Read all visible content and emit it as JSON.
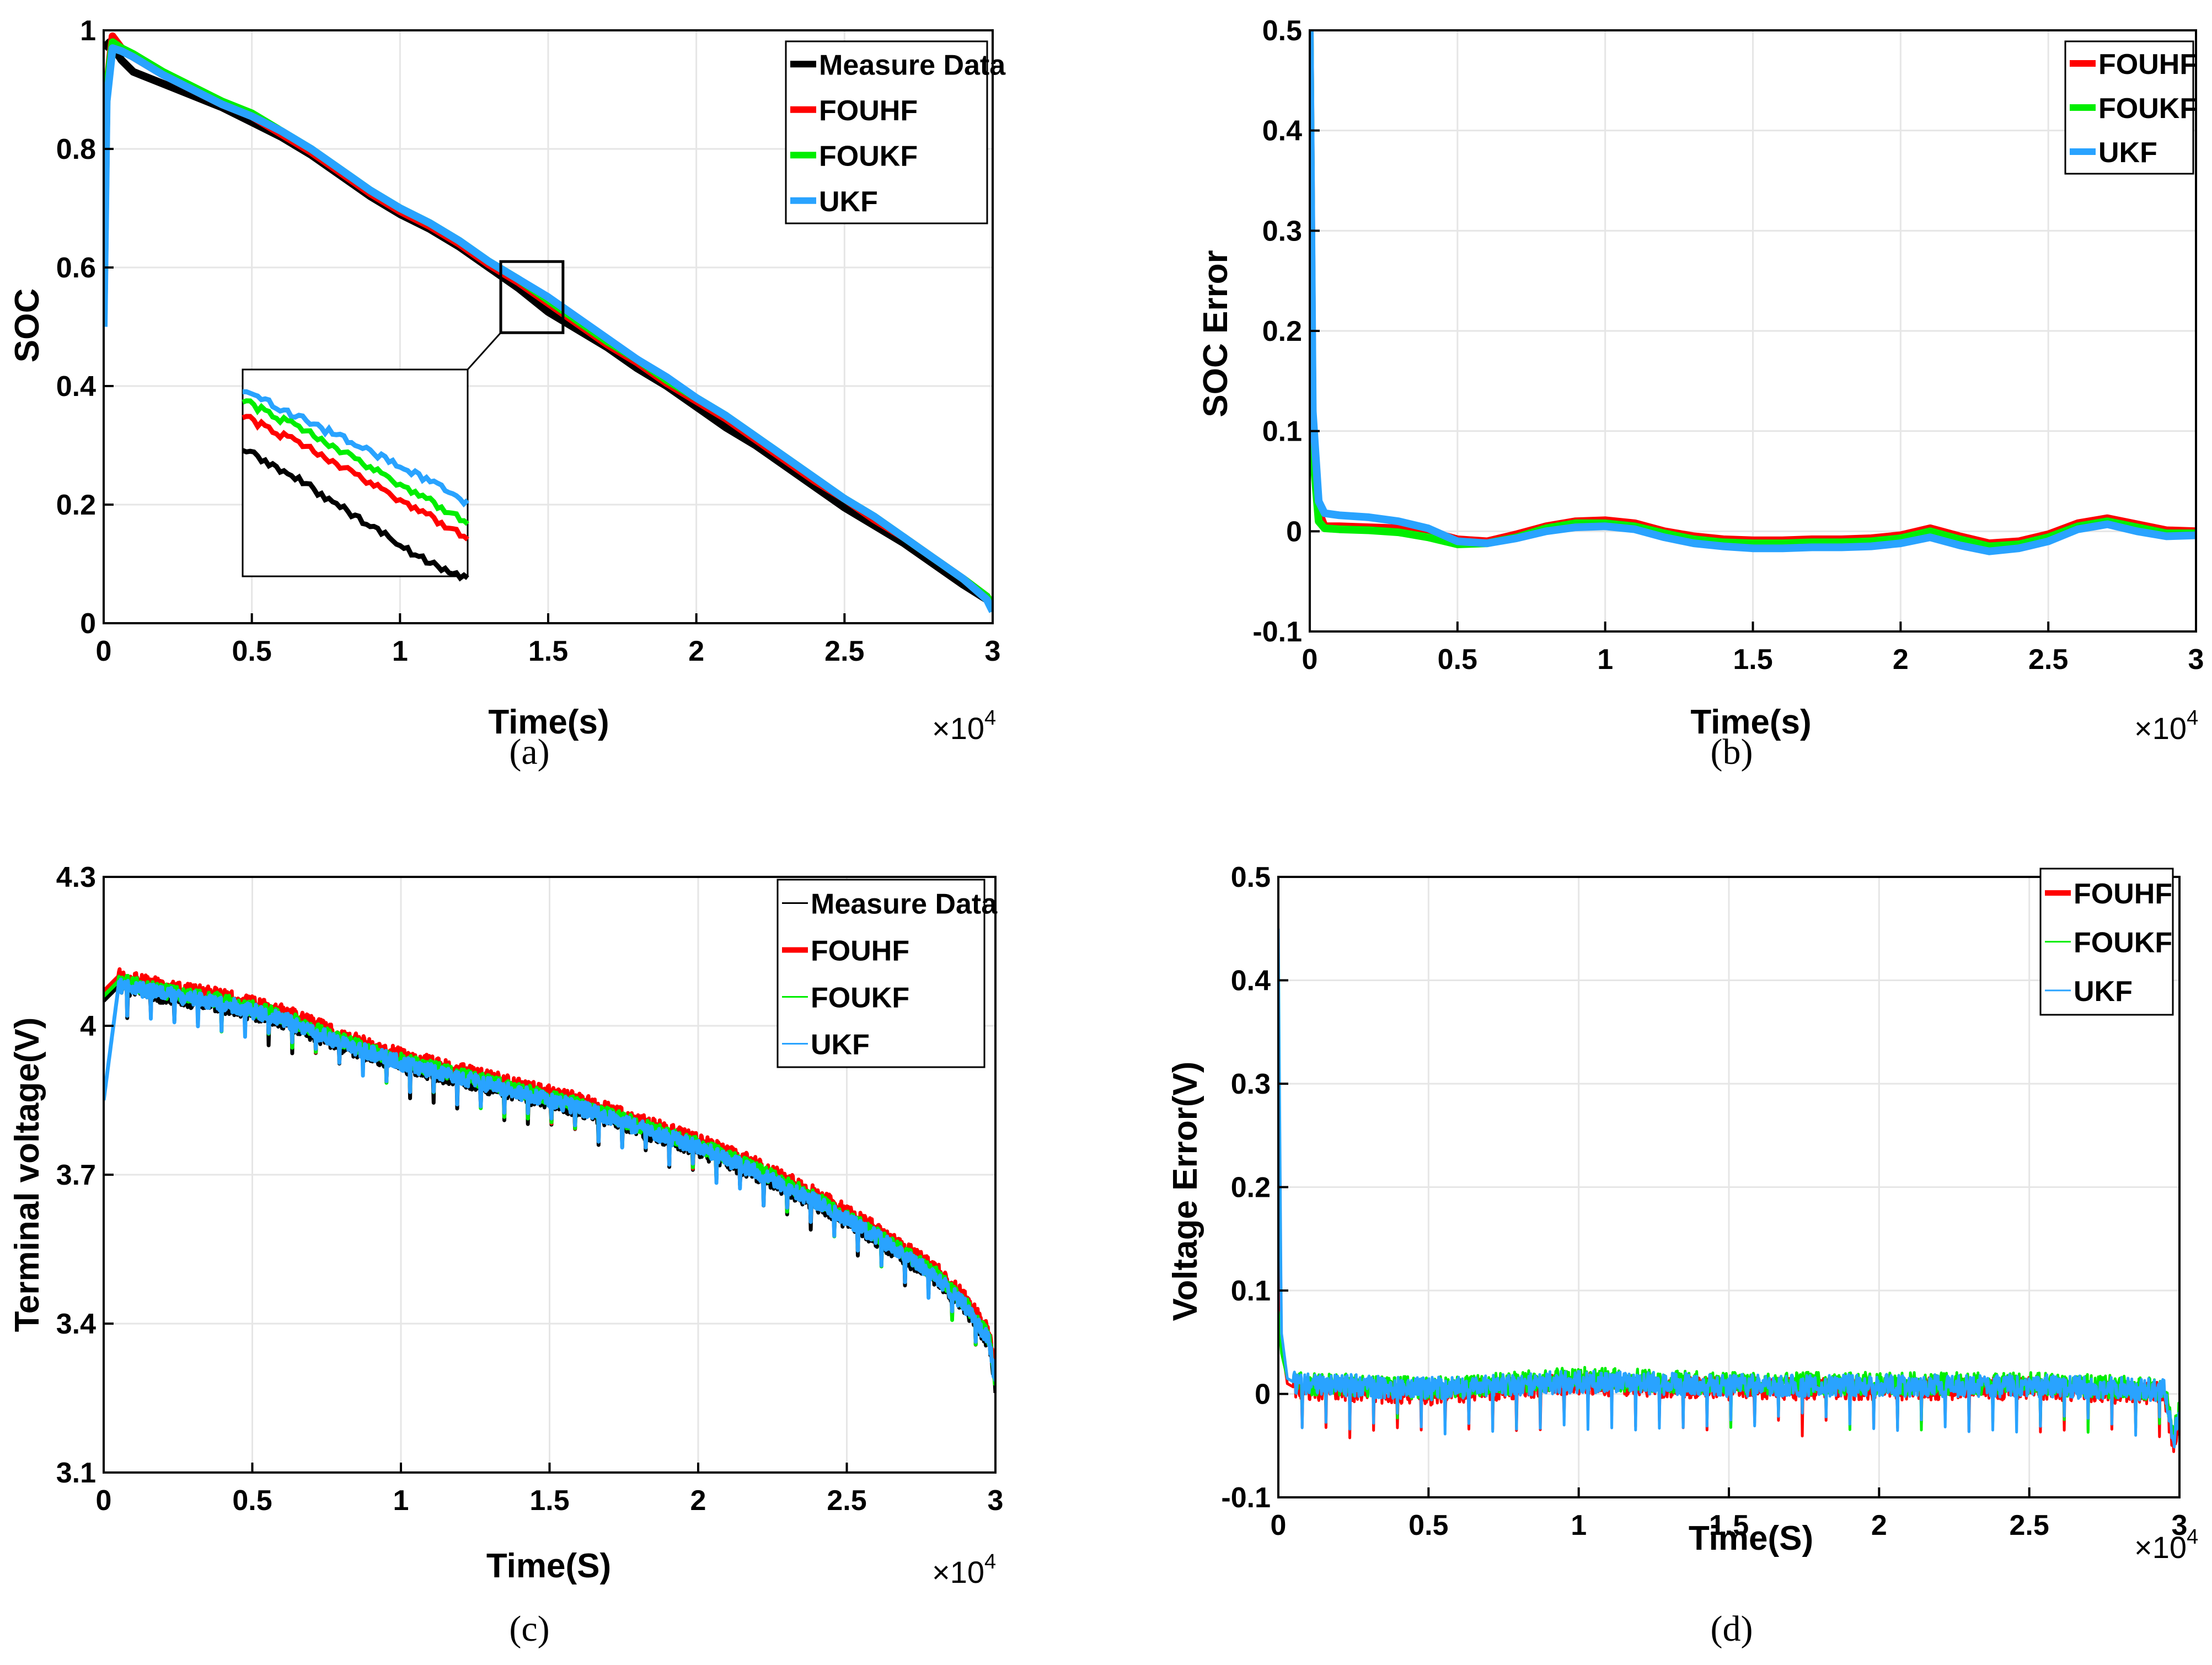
{
  "figure_captions": [
    "(a)",
    "(b)",
    "(c)",
    "(d)"
  ],
  "chart_data": [
    {
      "id": "a",
      "type": "line",
      "caption": "(a)",
      "xlabel": "Time(s)",
      "ylabel": "SOC",
      "x_multiplier": "×10",
      "x_multiplier_exp": "4",
      "xlim": [
        0,
        30000
      ],
      "ylim": [
        0,
        1
      ],
      "xticks": [
        0,
        5000,
        10000,
        15000,
        20000,
        25000,
        30000
      ],
      "xtick_labels": [
        "0",
        "0.5",
        "1",
        "1.5",
        "2",
        "2.5",
        "3"
      ],
      "yticks": [
        0,
        0.2,
        0.4,
        0.6,
        0.8,
        1
      ],
      "ytick_labels": [
        "0",
        "0.2",
        "0.4",
        "0.6",
        "0.8",
        "1"
      ],
      "grid": true,
      "legend_position": "top-right",
      "series": [
        {
          "name": "Measure Data",
          "color": "#000000",
          "x": [
            0,
            200,
            600,
            1000,
            2000,
            3000,
            4000,
            5000,
            6000,
            7000,
            8000,
            9000,
            10000,
            11000,
            12000,
            13000,
            14000,
            15000,
            16000,
            17000,
            18000,
            19000,
            20000,
            21000,
            22000,
            23000,
            24000,
            25000,
            26000,
            27000,
            28000,
            29000,
            29800,
            30000
          ],
          "y": [
            0.97,
            0.98,
            0.95,
            0.93,
            0.91,
            0.89,
            0.87,
            0.845,
            0.82,
            0.79,
            0.755,
            0.72,
            0.69,
            0.665,
            0.635,
            0.6,
            0.565,
            0.525,
            0.495,
            0.465,
            0.43,
            0.4,
            0.365,
            0.33,
            0.3,
            0.265,
            0.23,
            0.195,
            0.165,
            0.135,
            0.1,
            0.065,
            0.04,
            0.025
          ]
        },
        {
          "name": "FOUHF",
          "color": "#ff0000",
          "x": [
            0,
            100,
            300,
            600,
            1000,
            2000,
            3000,
            4000,
            5000,
            6000,
            7000,
            8000,
            9000,
            10000,
            11000,
            12000,
            13000,
            14000,
            15000,
            16000,
            17000,
            18000,
            19000,
            20000,
            21000,
            22000,
            23000,
            24000,
            25000,
            26000,
            27000,
            28000,
            29000,
            29800,
            30000
          ],
          "y": [
            0.52,
            0.9,
            0.99,
            0.97,
            0.955,
            0.925,
            0.9,
            0.875,
            0.855,
            0.825,
            0.795,
            0.76,
            0.725,
            0.695,
            0.67,
            0.64,
            0.605,
            0.575,
            0.54,
            0.505,
            0.47,
            0.44,
            0.405,
            0.375,
            0.345,
            0.31,
            0.275,
            0.24,
            0.21,
            0.175,
            0.145,
            0.11,
            0.075,
            0.045,
            0.03
          ]
        },
        {
          "name": "FOUKF",
          "color": "#00ee00",
          "x": [
            0,
            100,
            300,
            600,
            1000,
            2000,
            3000,
            4000,
            5000,
            6000,
            7000,
            8000,
            9000,
            10000,
            11000,
            12000,
            13000,
            14000,
            15000,
            16000,
            17000,
            18000,
            19000,
            20000,
            21000,
            22000,
            23000,
            24000,
            25000,
            26000,
            27000,
            28000,
            29000,
            29800,
            30000
          ],
          "y": [
            0.52,
            0.9,
            0.98,
            0.97,
            0.96,
            0.93,
            0.905,
            0.88,
            0.86,
            0.83,
            0.8,
            0.765,
            0.73,
            0.7,
            0.675,
            0.645,
            0.61,
            0.58,
            0.545,
            0.51,
            0.475,
            0.445,
            0.41,
            0.38,
            0.35,
            0.315,
            0.28,
            0.245,
            0.21,
            0.18,
            0.145,
            0.11,
            0.075,
            0.045,
            0.03
          ]
        },
        {
          "name": "UKF",
          "color": "#29a3ff",
          "x": [
            0,
            100,
            300,
            600,
            1000,
            2000,
            3000,
            4000,
            5000,
            6000,
            7000,
            8000,
            9000,
            10000,
            11000,
            12000,
            13000,
            14000,
            15000,
            16000,
            17000,
            18000,
            19000,
            20000,
            21000,
            22000,
            23000,
            24000,
            25000,
            26000,
            27000,
            28000,
            29000,
            29800,
            30000
          ],
          "y": [
            0.5,
            0.88,
            0.97,
            0.965,
            0.955,
            0.925,
            0.9,
            0.875,
            0.855,
            0.83,
            0.8,
            0.765,
            0.73,
            0.7,
            0.675,
            0.645,
            0.61,
            0.58,
            0.55,
            0.515,
            0.48,
            0.445,
            0.415,
            0.38,
            0.35,
            0.315,
            0.28,
            0.245,
            0.21,
            0.18,
            0.145,
            0.11,
            0.075,
            0.04,
            0.02
          ]
        }
      ]
    },
    {
      "id": "b",
      "type": "line",
      "caption": "(b)",
      "xlabel": "Time(s)",
      "ylabel": "SOC Error",
      "x_multiplier": "×10",
      "x_multiplier_exp": "4",
      "xlim": [
        0,
        30000
      ],
      "ylim": [
        -0.1,
        0.5
      ],
      "xticks": [
        0,
        5000,
        10000,
        15000,
        20000,
        25000,
        30000
      ],
      "xtick_labels": [
        "0",
        "0.5",
        "1",
        "1.5",
        "2",
        "2.5",
        "3"
      ],
      "yticks": [
        -0.1,
        0,
        0.1,
        0.2,
        0.3,
        0.4,
        0.5
      ],
      "ytick_labels": [
        "-0.1",
        "0",
        "0.1",
        "0.2",
        "0.3",
        "0.4",
        "0.5"
      ],
      "grid": true,
      "legend_position": "top-right",
      "series": [
        {
          "name": "FOUHF",
          "color": "#ff0000",
          "x": [
            0,
            100,
            300,
            500,
            1000,
            2000,
            3000,
            4000,
            5000,
            6000,
            7000,
            8000,
            9000,
            10000,
            11000,
            12000,
            13000,
            14000,
            15000,
            16000,
            17000,
            18000,
            19000,
            20000,
            21000,
            22000,
            23000,
            24000,
            25000,
            26000,
            27000,
            28000,
            29000,
            30000
          ],
          "y": [
            0.5,
            0.1,
            0.02,
            0.005,
            0.005,
            0.004,
            0.003,
            0.0,
            -0.008,
            -0.01,
            -0.003,
            0.005,
            0.01,
            0.011,
            0.008,
            0.0,
            -0.005,
            -0.008,
            -0.009,
            -0.009,
            -0.008,
            -0.008,
            -0.007,
            -0.004,
            0.003,
            -0.005,
            -0.012,
            -0.01,
            -0.003,
            0.008,
            0.013,
            0.007,
            0.001,
            0.0
          ]
        },
        {
          "name": "FOUKF",
          "color": "#00ee00",
          "x": [
            0,
            100,
            300,
            500,
            1000,
            2000,
            3000,
            4000,
            5000,
            6000,
            7000,
            8000,
            9000,
            10000,
            11000,
            12000,
            13000,
            14000,
            15000,
            16000,
            17000,
            18000,
            19000,
            20000,
            21000,
            22000,
            23000,
            24000,
            25000,
            26000,
            27000,
            28000,
            29000,
            30000
          ],
          "y": [
            0.5,
            0.08,
            0.01,
            0.003,
            0.002,
            0.001,
            -0.001,
            -0.006,
            -0.013,
            -0.012,
            -0.006,
            0.003,
            0.008,
            0.008,
            0.005,
            -0.002,
            -0.008,
            -0.011,
            -0.012,
            -0.012,
            -0.011,
            -0.011,
            -0.01,
            -0.007,
            0.0,
            -0.008,
            -0.015,
            -0.013,
            -0.006,
            0.005,
            0.01,
            0.004,
            -0.002,
            -0.002
          ]
        },
        {
          "name": "UKF",
          "color": "#29a3ff",
          "x": [
            0,
            100,
            300,
            500,
            1000,
            2000,
            3000,
            4000,
            5000,
            6000,
            7000,
            8000,
            9000,
            10000,
            11000,
            12000,
            13000,
            14000,
            15000,
            16000,
            17000,
            18000,
            19000,
            20000,
            21000,
            22000,
            23000,
            24000,
            25000,
            26000,
            27000,
            28000,
            29000,
            30000
          ],
          "y": [
            0.5,
            0.12,
            0.03,
            0.018,
            0.016,
            0.014,
            0.01,
            0.003,
            -0.01,
            -0.012,
            -0.007,
            0.0,
            0.004,
            0.005,
            0.002,
            -0.006,
            -0.012,
            -0.015,
            -0.017,
            -0.017,
            -0.016,
            -0.016,
            -0.015,
            -0.012,
            -0.006,
            -0.014,
            -0.02,
            -0.017,
            -0.01,
            0.002,
            0.007,
            0.0,
            -0.005,
            -0.004
          ]
        }
      ]
    },
    {
      "id": "c",
      "type": "line",
      "caption": "(c)",
      "xlabel": "Time(S)",
      "ylabel": "Terminal voltage(V)",
      "x_multiplier": "×10",
      "x_multiplier_exp": "4",
      "xlim": [
        0,
        30000
      ],
      "ylim": [
        3.1,
        4.3
      ],
      "xticks": [
        0,
        5000,
        10000,
        15000,
        20000,
        25000,
        30000
      ],
      "xtick_labels": [
        "0",
        "0.5",
        "1",
        "1.5",
        "2",
        "2.5",
        "3"
      ],
      "yticks": [
        3.1,
        3.4,
        3.7,
        4.0,
        4.3
      ],
      "ytick_labels": [
        "3.1",
        "3.4",
        "3.7",
        "4",
        "4.3"
      ],
      "grid": true,
      "legend_position": "top-right",
      "series": [
        {
          "name": "Measure Data",
          "color": "#000000",
          "x": [
            0,
            500,
            2000,
            4000,
            6000,
            8000,
            10000,
            12000,
            14000,
            16000,
            18000,
            20000,
            22000,
            24000,
            26000,
            28000,
            29000,
            29800,
            30000
          ],
          "y": [
            4.05,
            4.08,
            4.06,
            4.04,
            4.01,
            3.96,
            3.92,
            3.89,
            3.86,
            3.83,
            3.79,
            3.75,
            3.7,
            3.64,
            3.57,
            3.49,
            3.43,
            3.36,
            3.26
          ]
        },
        {
          "name": "FOUHF",
          "color": "#ff0000",
          "x": [
            0,
            500,
            2000,
            4000,
            6000,
            8000,
            10000,
            12000,
            14000,
            16000,
            18000,
            20000,
            22000,
            24000,
            26000,
            28000,
            29000,
            29800,
            30000
          ],
          "y": [
            4.07,
            4.1,
            4.08,
            4.06,
            4.03,
            3.98,
            3.94,
            3.91,
            3.88,
            3.85,
            3.81,
            3.77,
            3.72,
            3.66,
            3.59,
            3.51,
            3.45,
            3.38,
            3.29
          ]
        },
        {
          "name": "FOUKF",
          "color": "#00ee00",
          "x": [
            0,
            500,
            2000,
            4000,
            6000,
            8000,
            10000,
            12000,
            14000,
            16000,
            18000,
            20000,
            22000,
            24000,
            26000,
            28000,
            29000,
            29800,
            30000
          ],
          "y": [
            4.06,
            4.09,
            4.07,
            4.05,
            4.02,
            3.97,
            3.93,
            3.9,
            3.87,
            3.84,
            3.8,
            3.76,
            3.71,
            3.65,
            3.58,
            3.5,
            3.44,
            3.37,
            3.28
          ]
        },
        {
          "name": "UKF",
          "color": "#29a3ff",
          "x": [
            0,
            500,
            2000,
            4000,
            6000,
            8000,
            10000,
            12000,
            14000,
            16000,
            18000,
            20000,
            22000,
            24000,
            26000,
            28000,
            29000,
            29800,
            30000
          ],
          "y": [
            3.85,
            4.08,
            4.065,
            4.045,
            4.015,
            3.965,
            3.925,
            3.895,
            3.865,
            3.835,
            3.795,
            3.755,
            3.705,
            3.645,
            3.575,
            3.495,
            3.435,
            3.365,
            3.275
          ]
        }
      ]
    },
    {
      "id": "d",
      "type": "line",
      "caption": "(d)",
      "xlabel": "Time(S)",
      "ylabel": "Voltage Error(V)",
      "x_multiplier": "×10",
      "x_multiplier_exp": "4",
      "xlim": [
        0,
        30000
      ],
      "ylim": [
        -0.1,
        0.5
      ],
      "xticks": [
        0,
        5000,
        10000,
        15000,
        20000,
        25000,
        30000
      ],
      "xtick_labels": [
        "0",
        "0.5",
        "1",
        "1.5",
        "2",
        "2.5",
        "3"
      ],
      "yticks": [
        -0.1,
        0,
        0.1,
        0.2,
        0.3,
        0.4,
        0.5
      ],
      "ytick_labels": [
        "-0.1",
        "0",
        "0.1",
        "0.2",
        "0.3",
        "0.4",
        "0.5"
      ],
      "grid": true,
      "legend_position": "top-right",
      "series": [
        {
          "name": "FOUHF",
          "color": "#ff0000",
          "x": [
            0,
            100,
            300,
            600,
            1000,
            5000,
            10000,
            15000,
            20000,
            25000,
            29500,
            29800,
            30000
          ],
          "y": [
            0.17,
            0.05,
            0.01,
            0.005,
            0.005,
            0.0,
            0.01,
            0.005,
            0.005,
            0.005,
            0.0,
            -0.05,
            -0.02
          ]
        },
        {
          "name": "FOUKF",
          "color": "#00ee00",
          "x": [
            0,
            100,
            300,
            600,
            1000,
            5000,
            10000,
            15000,
            20000,
            25000,
            29500,
            29800,
            30000
          ],
          "y": [
            0.08,
            0.04,
            0.015,
            0.01,
            0.01,
            0.005,
            0.015,
            0.01,
            0.01,
            0.01,
            0.005,
            -0.04,
            -0.015
          ]
        },
        {
          "name": "UKF",
          "color": "#29a3ff",
          "x": [
            0,
            100,
            300,
            600,
            1000,
            5000,
            10000,
            15000,
            20000,
            25000,
            29500,
            29800,
            30000
          ],
          "y": [
            0.45,
            0.06,
            0.015,
            0.01,
            0.01,
            0.005,
            0.012,
            0.008,
            0.008,
            0.008,
            0.004,
            -0.045,
            -0.015
          ]
        }
      ]
    }
  ]
}
